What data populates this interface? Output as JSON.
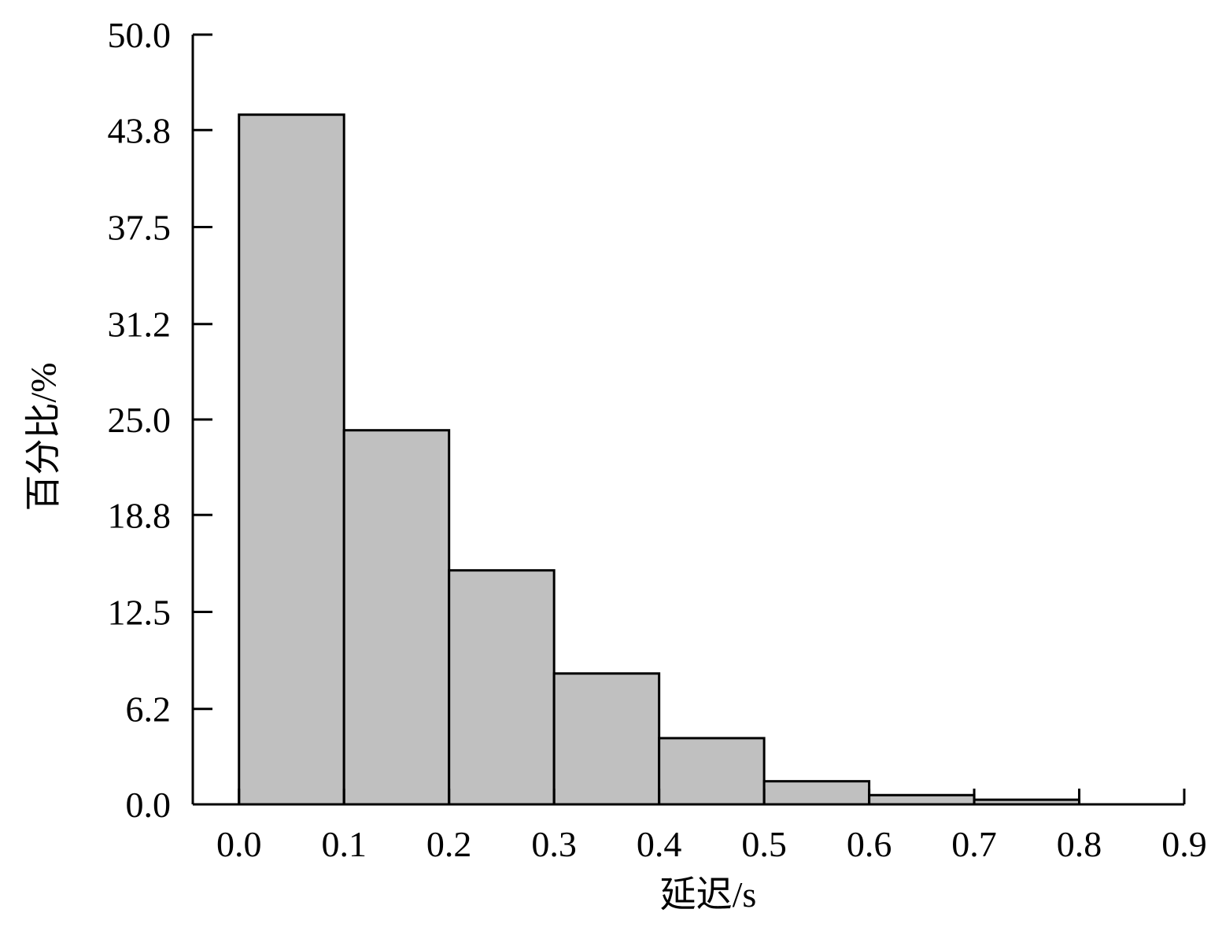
{
  "chart_data": {
    "type": "histogram",
    "xlabel": "延迟/s",
    "ylabel": "百分比/%",
    "bins": [
      0,
      0.1,
      0.2,
      0.3,
      0.4,
      0.5,
      0.6,
      0.7,
      0.8
    ],
    "values": [
      44.8,
      24.3,
      15.2,
      8.5,
      4.3,
      1.5,
      0.6,
      0.3
    ],
    "color": "#c0c0c0",
    "xlim": [
      -0.044,
      0.9
    ],
    "xticks": [
      {
        "value": 0,
        "label": "0.0"
      },
      0.1,
      0.2,
      0.3,
      0.4,
      0.5,
      0.6,
      0.7,
      0.8,
      0.9
    ],
    "ylim": [
      0,
      50
    ],
    "yticks": [
      {
        "value": 0,
        "label": "0.0"
      },
      6.2,
      12.5,
      18.8,
      {
        "value": 25,
        "label": "25.0"
      },
      31.2,
      37.5,
      43.8,
      {
        "value": 50,
        "label": "50.0"
      }
    ],
    "grid": false
  }
}
